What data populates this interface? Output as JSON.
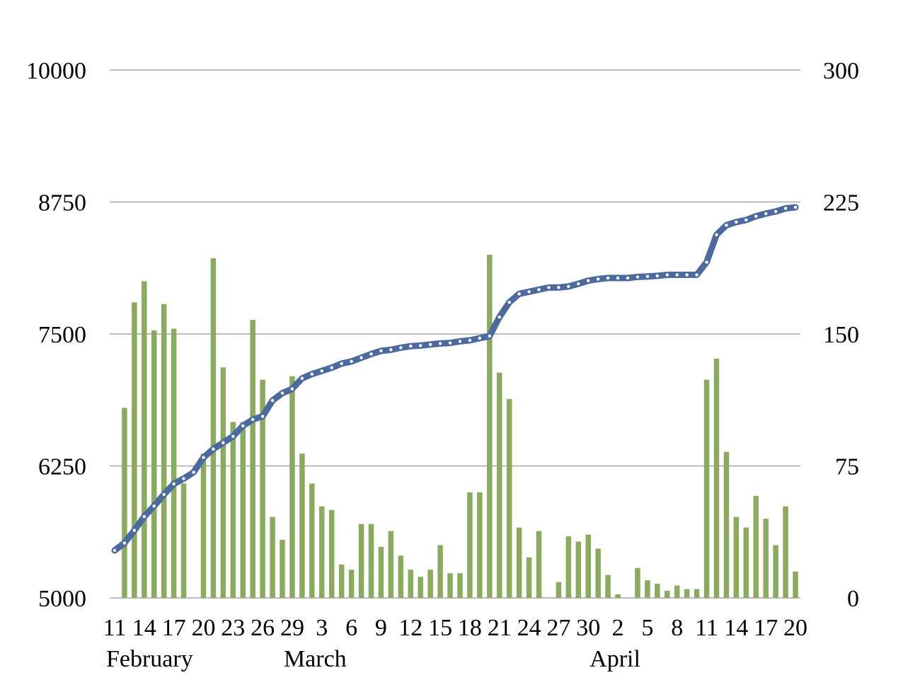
{
  "chart_data": {
    "type": "bar+line",
    "title": "",
    "x_axis": {
      "start_date": "Feb 11",
      "tick_labels": [
        "11",
        "14",
        "17",
        "20",
        "23",
        "26",
        "29",
        "3",
        "6",
        "9",
        "12",
        "15",
        "18",
        "21",
        "24",
        "27",
        "30",
        "2",
        "5",
        "8",
        "11",
        "14",
        "17",
        "20"
      ],
      "month_labels": [
        "February",
        "March",
        "April"
      ]
    },
    "y_axes": {
      "left": {
        "min": 5000,
        "max": 10000,
        "ticks": [
          "5000",
          "6250",
          "7500",
          "8750",
          "10000"
        ]
      },
      "right": {
        "min": 0,
        "max": 300,
        "ticks": [
          "0",
          "75",
          "150",
          "225",
          "300"
        ]
      }
    },
    "grid": true,
    "legend": "none",
    "series": [
      {
        "type": "bar",
        "axis": "right",
        "color": "#8aaa5e",
        "values": [
          0,
          108,
          168,
          180,
          152,
          167,
          153,
          65,
          0,
          82,
          193,
          131,
          100,
          100,
          158,
          124,
          46,
          33,
          126,
          82,
          65,
          52,
          50,
          19,
          16,
          42,
          42,
          29,
          38,
          24,
          16,
          12,
          16,
          30,
          14,
          14,
          60,
          60,
          195,
          128,
          113,
          40,
          23,
          38,
          0,
          9,
          35,
          32,
          36,
          28,
          13,
          2,
          0,
          17,
          10,
          8,
          4,
          7,
          5,
          5,
          124,
          136,
          83,
          46,
          40,
          58,
          45,
          30,
          52,
          15
        ]
      },
      {
        "type": "line",
        "axis": "left",
        "color": "#4a6aa0",
        "values": [
          5450,
          5520,
          5640,
          5770,
          5870,
          5980,
          6080,
          6130,
          6190,
          6330,
          6410,
          6470,
          6530,
          6630,
          6690,
          6720,
          6870,
          6940,
          6980,
          7080,
          7120,
          7150,
          7180,
          7220,
          7240,
          7275,
          7310,
          7340,
          7350,
          7370,
          7385,
          7390,
          7400,
          7410,
          7415,
          7430,
          7440,
          7460,
          7480,
          7660,
          7800,
          7880,
          7900,
          7920,
          7940,
          7940,
          7950,
          7975,
          8005,
          8020,
          8030,
          8030,
          8030,
          8040,
          8045,
          8050,
          8060,
          8060,
          8060,
          8060,
          8180,
          8440,
          8530,
          8560,
          8580,
          8615,
          8640,
          8660,
          8690,
          8700
        ]
      }
    ]
  }
}
